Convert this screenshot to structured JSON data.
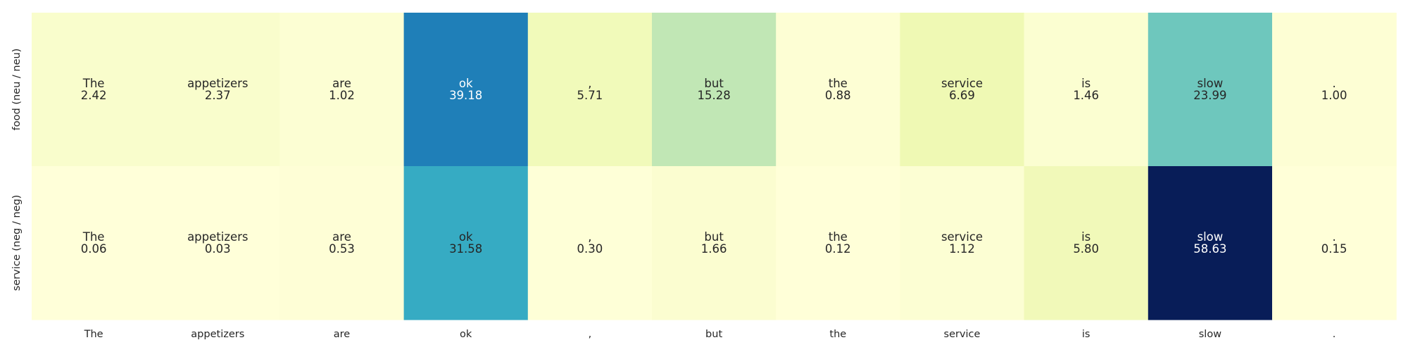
{
  "chart_data": {
    "type": "heatmap",
    "title": "",
    "xlabel": "",
    "ylabel": "",
    "x_tick_labels": [
      "The",
      "appetizers",
      "are",
      "ok",
      ",",
      "but",
      "the",
      "service",
      "is",
      "slow",
      "."
    ],
    "rows": [
      {
        "label": "food (neu / neu)",
        "tokens": [
          "The",
          "appetizers",
          "are",
          "ok",
          ",",
          "but",
          "the",
          "service",
          "is",
          "slow",
          "."
        ],
        "values": [
          2.42,
          2.37,
          1.02,
          39.18,
          5.71,
          15.28,
          0.88,
          6.69,
          1.46,
          23.99,
          1.0
        ],
        "value_labels": [
          "2.42",
          "2.37",
          "1.02",
          "39.18",
          "5.71",
          "15.28",
          "0.88",
          "6.69",
          "1.46",
          "23.99",
          "1.00"
        ]
      },
      {
        "label": "service (neg / neg)",
        "tokens": [
          "The",
          "appetizers",
          "are",
          "ok",
          ",",
          "but",
          "the",
          "service",
          "is",
          "slow",
          "."
        ],
        "values": [
          0.06,
          0.03,
          0.53,
          31.58,
          0.3,
          1.66,
          0.12,
          1.12,
          5.8,
          58.63,
          0.15
        ],
        "value_labels": [
          "0.06",
          "0.03",
          "0.53",
          "31.58",
          "0.30",
          "1.66",
          "0.12",
          "1.12",
          "5.80",
          "58.63",
          "0.15"
        ]
      }
    ],
    "colormap": "YlGnBu",
    "value_range": [
      0,
      58.63
    ],
    "legend": "none",
    "grid": false
  }
}
